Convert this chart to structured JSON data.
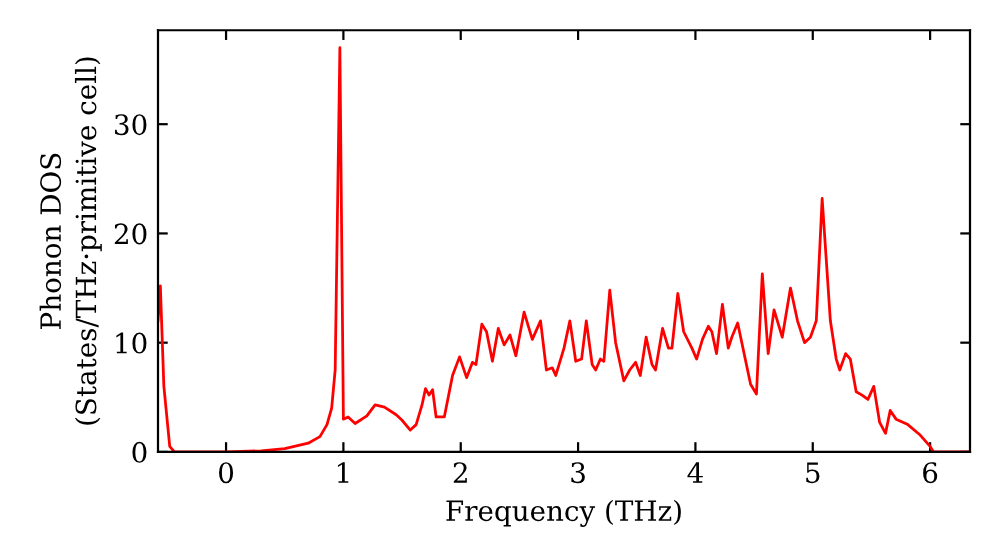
{
  "chart_data": {
    "type": "line",
    "xlabel": "Frequency (THz)",
    "ylabel": "Phonon DOS\n(States/THz·primitive cell)",
    "xlim": [
      -0.58,
      6.34
    ],
    "ylim": [
      0,
      38.6
    ],
    "xticks": [
      0,
      1,
      2,
      3,
      4,
      5,
      6
    ],
    "yticks": [
      0,
      10,
      20,
      30
    ],
    "grid": false,
    "marker": "none",
    "line_style": "solid",
    "series": [
      {
        "color": "#ff0000",
        "x": [
          -0.58,
          -0.56,
          -0.53,
          -0.48,
          -0.44,
          0,
          0.3,
          0.5,
          0.7,
          0.8,
          0.86,
          0.9,
          0.93,
          0.97,
          1.0,
          1.04,
          1.1,
          1.2,
          1.27,
          1.35,
          1.45,
          1.5,
          1.57,
          1.62,
          1.67,
          1.7,
          1.73,
          1.76,
          1.79,
          1.83,
          1.86,
          1.93,
          1.99,
          2.05,
          2.1,
          2.13,
          2.18,
          2.22,
          2.27,
          2.32,
          2.37,
          2.42,
          2.47,
          2.54,
          2.61,
          2.68,
          2.73,
          2.78,
          2.81,
          2.88,
          2.93,
          2.98,
          3.03,
          3.07,
          3.12,
          3.15,
          3.19,
          3.22,
          3.27,
          3.32,
          3.39,
          3.44,
          3.49,
          3.53,
          3.58,
          3.63,
          3.66,
          3.72,
          3.77,
          3.8,
          3.85,
          3.9,
          3.97,
          4.01,
          4.06,
          4.11,
          4.14,
          4.18,
          4.23,
          4.28,
          4.31,
          4.36,
          4.47,
          4.52,
          4.57,
          4.62,
          4.67,
          4.74,
          4.81,
          4.87,
          4.93,
          4.98,
          5.03,
          5.08,
          5.15,
          5.2,
          5.23,
          5.28,
          5.32,
          5.37,
          5.42,
          5.47,
          5.52,
          5.57,
          5.62,
          5.66,
          5.71,
          5.81,
          5.91,
          6.0,
          6.03,
          6.34
        ],
        "values": [
          12,
          15.2,
          6,
          0.5,
          0,
          0,
          0.1,
          0.3,
          0.8,
          1.4,
          2.5,
          4,
          7.5,
          37,
          3,
          3.2,
          2.6,
          3.3,
          4.3,
          4.1,
          3.4,
          2.9,
          2,
          2.5,
          4.3,
          5.8,
          5.2,
          5.7,
          3.2,
          3.2,
          3.2,
          7,
          8.7,
          6.8,
          8.2,
          8,
          11.7,
          11,
          8.3,
          11.3,
          9.8,
          10.7,
          8.8,
          12.8,
          10.3,
          12,
          7.5,
          7.7,
          7,
          9.5,
          12,
          8.3,
          8.5,
          12,
          8,
          7.5,
          8.5,
          8.3,
          14.8,
          10,
          6.5,
          7.5,
          8.2,
          7,
          10.5,
          8,
          7.5,
          11.3,
          9.5,
          9.5,
          14.5,
          11,
          9.5,
          8.5,
          10.3,
          11.5,
          11,
          9,
          13.5,
          9.5,
          10.5,
          11.8,
          6.2,
          5.3,
          16.3,
          9,
          13,
          10.5,
          15,
          12,
          10,
          10.5,
          12,
          23.2,
          12,
          8.5,
          7.5,
          9,
          8.5,
          5.5,
          5.2,
          4.8,
          6,
          2.7,
          1.7,
          3.8,
          3,
          2.5,
          1.6,
          0.5,
          0,
          0
        ]
      }
    ]
  }
}
